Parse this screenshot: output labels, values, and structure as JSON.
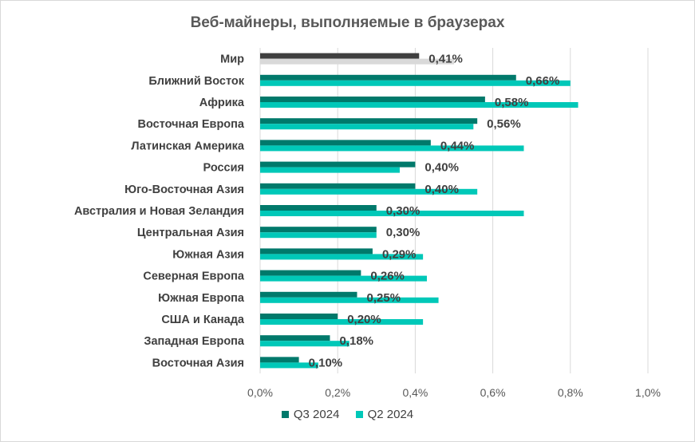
{
  "chart_data": {
    "type": "bar",
    "orientation": "horizontal",
    "title": "Веб-майнеры, выполняемые в браузерах",
    "categories": [
      "Мир",
      "Ближний Восток",
      "Африка",
      "Восточная Европа",
      "Латинская Америка",
      "Россия",
      "Юго-Восточная Азия",
      "Австралия и Новая Зеландия",
      "Центральная Азия",
      "Южная Азия",
      "Северная Европа",
      "Южная Европа",
      "США и Канада",
      "Западная Европа",
      "Восточная Азия"
    ],
    "series": [
      {
        "name": "Q3 2024",
        "color": "#00796b",
        "highlight_color": "#3f3f3f",
        "values": [
          0.41,
          0.66,
          0.58,
          0.56,
          0.44,
          0.4,
          0.4,
          0.3,
          0.3,
          0.29,
          0.26,
          0.25,
          0.2,
          0.18,
          0.1
        ]
      },
      {
        "name": "Q2 2024",
        "color": "#00c8b8",
        "highlight_color": "#d9d9d9",
        "values": [
          0.5,
          0.8,
          0.82,
          0.55,
          0.68,
          0.36,
          0.56,
          0.68,
          0.3,
          0.42,
          0.43,
          0.46,
          0.42,
          0.23,
          0.15
        ]
      }
    ],
    "data_labels": [
      "0,41%",
      "0,66%",
      "0,58%",
      "0,56%",
      "0,44%",
      "0,40%",
      "0,40%",
      "0,30%",
      "0,30%",
      "0,29%",
      "0,26%",
      "0,25%",
      "0,20%",
      "0,18%",
      "0,10%"
    ],
    "xlim": [
      0,
      1.0
    ],
    "xticks": [
      0,
      0.2,
      0.4,
      0.6,
      0.8,
      1.0
    ],
    "xtick_labels": [
      "0,0%",
      "0,2%",
      "0,4%",
      "0,6%",
      "0,8%",
      "1,0%"
    ],
    "grid": "vertical",
    "legend_position": "bottom"
  }
}
